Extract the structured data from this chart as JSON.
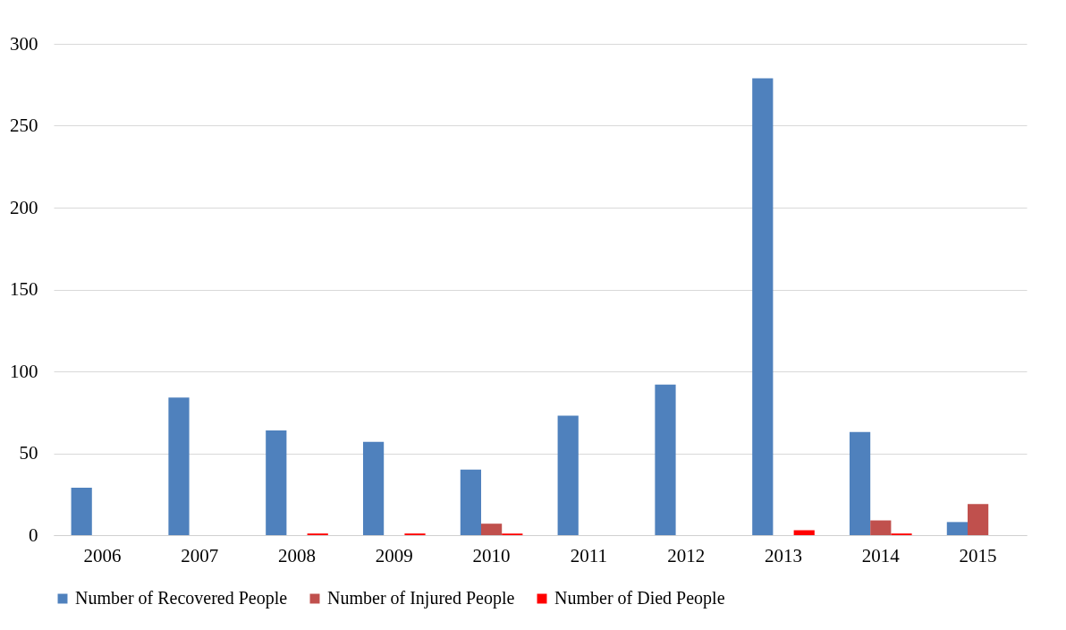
{
  "chart_data": {
    "type": "bar",
    "categories": [
      "2006",
      "2007",
      "2008",
      "2009",
      "2010",
      "2011",
      "2012",
      "2013",
      "2014",
      "2015"
    ],
    "series": [
      {
        "name": "Number of Recovered People",
        "color": "#4f81bd",
        "values": [
          29,
          84,
          64,
          57,
          40,
          73,
          92,
          279,
          63,
          8
        ]
      },
      {
        "name": "Number of Injured People",
        "color": "#c0504d",
        "values": [
          0,
          0,
          0,
          0,
          7,
          0,
          0,
          0,
          9,
          19
        ]
      },
      {
        "name": "Number of Died People",
        "color": "#ff0000",
        "values": [
          0,
          0,
          1,
          1,
          1,
          0,
          0,
          3,
          1,
          0
        ]
      }
    ],
    "ylim": [
      0,
      300
    ],
    "yticks": [
      0,
      50,
      100,
      150,
      200,
      250,
      300
    ],
    "grid": "y",
    "legend": "bottom"
  }
}
